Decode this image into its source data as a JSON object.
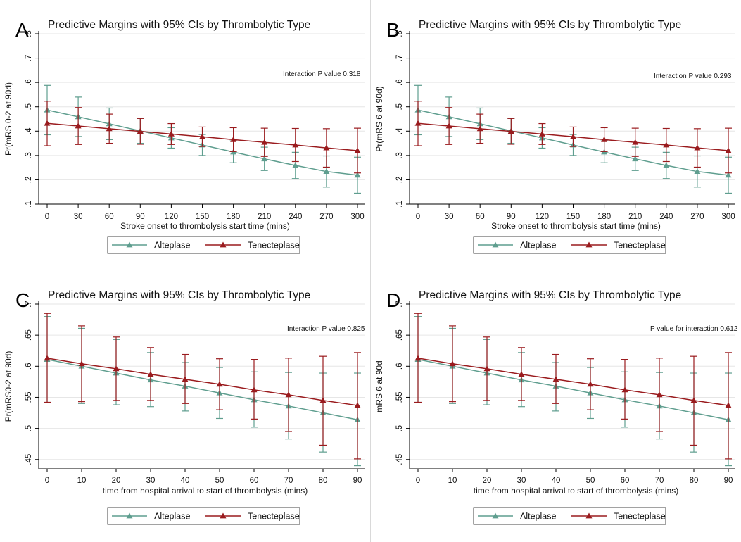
{
  "colors": {
    "alteplase": "#5f9e8f",
    "tenecteplase": "#9a1b1e",
    "gridline": "#e6e6e6",
    "axis": "#000000"
  },
  "chart_data": [
    {
      "panel": "A",
      "type": "line",
      "title": "Predictive Margins with 95% CIs by Thrombolytic Type",
      "xlabel": "Stroke onset to thrombolysis start time (mins)",
      "ylabel": "Pr(mRS 0-2 at 90d)",
      "annotation": "Interaction P value 0.318",
      "x": [
        0,
        30,
        60,
        90,
        120,
        150,
        180,
        210,
        240,
        270,
        300
      ],
      "xticks": [
        "0",
        "30",
        "60",
        "90",
        "120",
        "150",
        "180",
        "210",
        "240",
        "270",
        "300"
      ],
      "yticks": [
        ".1",
        ".2",
        ".3",
        ".4",
        ".5",
        ".6",
        ".7",
        ".8"
      ],
      "ylim": [
        0.1,
        0.8
      ],
      "grid": true,
      "legend_position": "bottom",
      "series": [
        {
          "name": "Alteplase",
          "marker": "triangle",
          "values": [
            0.487,
            0.459,
            0.43,
            0.401,
            0.372,
            0.343,
            0.314,
            0.286,
            0.259,
            0.234,
            0.219
          ],
          "lower": [
            0.385,
            0.378,
            0.365,
            0.35,
            0.33,
            0.3,
            0.27,
            0.238,
            0.205,
            0.17,
            0.145
          ],
          "upper": [
            0.588,
            0.54,
            0.495,
            0.452,
            0.414,
            0.386,
            0.36,
            0.334,
            0.313,
            0.298,
            0.293
          ]
        },
        {
          "name": "Tenecteplase",
          "marker": "triangle",
          "values": [
            0.432,
            0.421,
            0.41,
            0.399,
            0.388,
            0.377,
            0.365,
            0.354,
            0.343,
            0.331,
            0.32
          ],
          "lower": [
            0.34,
            0.345,
            0.35,
            0.346,
            0.345,
            0.337,
            0.316,
            0.296,
            0.275,
            0.252,
            0.228
          ],
          "upper": [
            0.523,
            0.497,
            0.47,
            0.452,
            0.431,
            0.417,
            0.414,
            0.412,
            0.411,
            0.41,
            0.412
          ]
        }
      ]
    },
    {
      "panel": "B",
      "type": "line",
      "title": "Predictive Margins with 95% CIs by Thrombolytic Type",
      "xlabel": "Stroke onset to thrombolysis start time (mins)",
      "ylabel": "Pr(mRS 6 at 90d)",
      "annotation": "Interaction P value 0.293",
      "x": [
        0,
        30,
        60,
        90,
        120,
        150,
        180,
        210,
        240,
        270,
        300
      ],
      "xticks": [
        "0",
        "30",
        "60",
        "90",
        "120",
        "150",
        "180",
        "210",
        "240",
        "270",
        "300"
      ],
      "yticks": [
        ".1",
        ".2",
        ".3",
        ".4",
        ".5",
        ".6",
        ".7",
        ".8"
      ],
      "ylim": [
        0.1,
        0.8
      ],
      "grid": true,
      "legend_position": "bottom",
      "series": [
        {
          "name": "Alteplase",
          "marker": "triangle",
          "values": [
            0.487,
            0.459,
            0.43,
            0.401,
            0.372,
            0.343,
            0.314,
            0.286,
            0.259,
            0.234,
            0.219
          ],
          "lower": [
            0.385,
            0.378,
            0.365,
            0.35,
            0.33,
            0.3,
            0.27,
            0.238,
            0.205,
            0.17,
            0.145
          ],
          "upper": [
            0.588,
            0.54,
            0.495,
            0.452,
            0.414,
            0.386,
            0.36,
            0.334,
            0.313,
            0.298,
            0.293
          ]
        },
        {
          "name": "Tenecteplase",
          "marker": "triangle",
          "values": [
            0.432,
            0.421,
            0.41,
            0.399,
            0.388,
            0.377,
            0.365,
            0.354,
            0.343,
            0.331,
            0.32
          ],
          "lower": [
            0.34,
            0.345,
            0.35,
            0.346,
            0.345,
            0.337,
            0.316,
            0.296,
            0.275,
            0.252,
            0.228
          ],
          "upper": [
            0.523,
            0.497,
            0.47,
            0.452,
            0.431,
            0.417,
            0.414,
            0.412,
            0.411,
            0.41,
            0.412
          ]
        }
      ]
    },
    {
      "panel": "C",
      "type": "line",
      "title": "Predictive Margins with 95% CIs by Thrombolytic Type",
      "xlabel": "time from hospital arrival to start of thrombolysis (mins)",
      "ylabel": "Pr(mRS0-2 at 90d)",
      "annotation": "Interaction P value 0.825",
      "x": [
        0,
        10,
        20,
        30,
        40,
        50,
        60,
        70,
        80,
        90
      ],
      "xticks": [
        "0",
        "10",
        "20",
        "30",
        "40",
        "50",
        "60",
        "70",
        "80",
        "90"
      ],
      "yticks": [
        ".45",
        ".5",
        ".55",
        ".6",
        ".65",
        ".7"
      ],
      "ylim": [
        0.435,
        0.7
      ],
      "grid": true,
      "legend_position": "bottom",
      "series": [
        {
          "name": "Alteplase",
          "marker": "triangle",
          "values": [
            0.611,
            0.6,
            0.589,
            0.578,
            0.568,
            0.557,
            0.546,
            0.536,
            0.525,
            0.514
          ],
          "lower": [
            0.542,
            0.54,
            0.538,
            0.535,
            0.528,
            0.516,
            0.502,
            0.483,
            0.462,
            0.44
          ],
          "upper": [
            0.68,
            0.661,
            0.643,
            0.622,
            0.606,
            0.598,
            0.591,
            0.59,
            0.589,
            0.589
          ]
        },
        {
          "name": "Tenecteplase",
          "marker": "triangle",
          "values": [
            0.613,
            0.604,
            0.596,
            0.587,
            0.579,
            0.571,
            0.562,
            0.554,
            0.545,
            0.537
          ],
          "lower": [
            0.542,
            0.543,
            0.545,
            0.545,
            0.54,
            0.53,
            0.515,
            0.495,
            0.473,
            0.451
          ],
          "upper": [
            0.685,
            0.665,
            0.647,
            0.63,
            0.619,
            0.612,
            0.611,
            0.613,
            0.616,
            0.622
          ]
        }
      ]
    },
    {
      "panel": "D",
      "type": "line",
      "title": "Predictive Margins with 95% CIs by Thrombolytic Type",
      "xlabel": "time from hospital arrival to start of thrombolysis (mins)",
      "ylabel": "mRS 6 at 90d",
      "annotation": "P value for interaction 0.612",
      "x": [
        0,
        10,
        20,
        30,
        40,
        50,
        60,
        70,
        80,
        90
      ],
      "xticks": [
        "0",
        "10",
        "20",
        "30",
        "40",
        "50",
        "60",
        "70",
        "80",
        "90"
      ],
      "yticks": [
        ".45",
        ".5",
        ".55",
        ".6",
        ".65",
        ".7"
      ],
      "ylim": [
        0.435,
        0.7
      ],
      "grid": true,
      "legend_position": "bottom",
      "series": [
        {
          "name": "Alteplase",
          "marker": "triangle",
          "values": [
            0.611,
            0.6,
            0.589,
            0.578,
            0.568,
            0.557,
            0.546,
            0.536,
            0.525,
            0.514
          ],
          "lower": [
            0.542,
            0.54,
            0.538,
            0.535,
            0.528,
            0.516,
            0.502,
            0.483,
            0.462,
            0.44
          ],
          "upper": [
            0.68,
            0.661,
            0.643,
            0.622,
            0.606,
            0.598,
            0.591,
            0.59,
            0.589,
            0.589
          ]
        },
        {
          "name": "Tenecteplase",
          "marker": "triangle",
          "values": [
            0.613,
            0.604,
            0.596,
            0.587,
            0.579,
            0.571,
            0.562,
            0.554,
            0.545,
            0.537
          ],
          "lower": [
            0.542,
            0.543,
            0.545,
            0.545,
            0.54,
            0.53,
            0.515,
            0.495,
            0.473,
            0.451
          ],
          "upper": [
            0.685,
            0.665,
            0.647,
            0.63,
            0.619,
            0.612,
            0.611,
            0.613,
            0.616,
            0.622
          ]
        }
      ]
    }
  ]
}
